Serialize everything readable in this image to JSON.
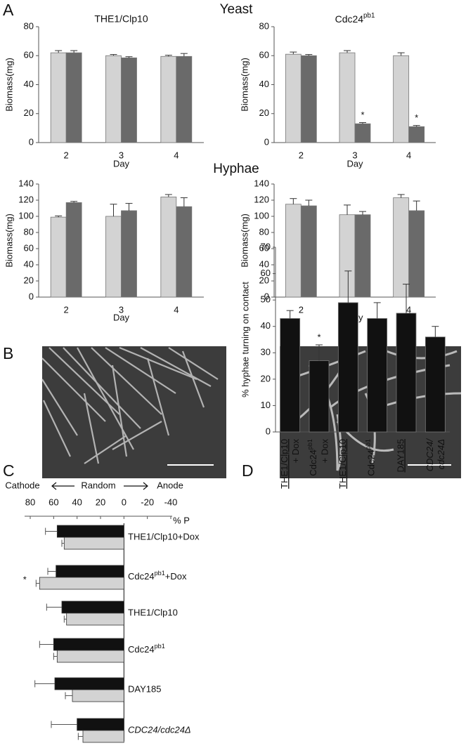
{
  "panel_labels": [
    "A",
    "B",
    "C",
    "D"
  ],
  "section_titles": [
    "Yeast",
    "Hyphae"
  ],
  "chart_data": [
    {
      "type": "bar",
      "title": "THE1/Clp10",
      "x_label": "Day",
      "y_label": "Biomass(mg)",
      "categories": [
        "2",
        "3",
        "4"
      ],
      "series": [
        {
          "color": "#d3d3d3",
          "values": [
            62,
            60,
            59.5
          ],
          "errors": [
            1.5,
            0.8,
            0.8
          ]
        },
        {
          "color": "#6a6a6a",
          "values": [
            62,
            58.5,
            59.5
          ],
          "errors": [
            1.5,
            0.8,
            2
          ]
        }
      ],
      "ylim": [
        0,
        80
      ],
      "yticks": [
        0,
        20,
        40,
        60,
        80
      ]
    },
    {
      "type": "bar",
      "title": {
        "pre": "Cdc24",
        "sup": "pb1"
      },
      "x_label": "Day",
      "y_label": "Biomass(mg)",
      "categories": [
        "2",
        "3",
        "4"
      ],
      "series": [
        {
          "color": "#d3d3d3",
          "values": [
            61,
            62,
            60
          ],
          "errors": [
            1.5,
            1.5,
            2
          ]
        },
        {
          "color": "#6a6a6a",
          "values": [
            60,
            13,
            11
          ],
          "errors": [
            0.8,
            0.8,
            0.8
          ],
          "significance": [
            null,
            "*",
            "*"
          ]
        }
      ],
      "ylim": [
        0,
        80
      ],
      "yticks": [
        0,
        20,
        40,
        60,
        80
      ]
    },
    {
      "type": "bar",
      "x_label": "Day",
      "y_label": "Biomass(mg)",
      "categories": [
        "2",
        "3",
        "4"
      ],
      "series": [
        {
          "color": "#d3d3d3",
          "values": [
            99,
            100,
            124
          ],
          "errors": [
            1.5,
            15,
            3
          ]
        },
        {
          "color": "#6a6a6a",
          "values": [
            117,
            107,
            112
          ],
          "errors": [
            1.5,
            9,
            11
          ]
        }
      ],
      "ylim": [
        0,
        140
      ],
      "yticks": [
        0,
        20,
        40,
        60,
        80,
        100,
        120,
        140
      ]
    },
    {
      "type": "bar",
      "x_label": "Day",
      "y_label": "Biomass(mg)",
      "categories": [
        "2",
        "3",
        "4"
      ],
      "series": [
        {
          "color": "#d3d3d3",
          "values": [
            115,
            102,
            123
          ],
          "errors": [
            7,
            12,
            4
          ]
        },
        {
          "color": "#6a6a6a",
          "values": [
            113,
            102,
            107
          ],
          "errors": [
            7,
            4,
            12
          ]
        }
      ],
      "ylim": [
        0,
        140
      ],
      "yticks": [
        0,
        20,
        40,
        60,
        80,
        100,
        120,
        140
      ]
    },
    {
      "type": "hbar",
      "direction_labels": [
        "Cathode",
        "Random",
        "Anode"
      ],
      "x_label": "% P",
      "categories": [
        "THE1/Clp10+Dox",
        {
          "pre": "Cdc24",
          "sup": "pb1",
          "post": "+Dox"
        },
        "THE1/Clp10",
        {
          "pre": "Cdc24",
          "sup": "pb1"
        },
        "DAY185",
        "CDC24/cdc24Δ"
      ],
      "italic": [
        5
      ],
      "series": [
        {
          "color": "#111111",
          "values": [
            57,
            58,
            53,
            60,
            59,
            40
          ],
          "errors": [
            10,
            7,
            13,
            12,
            17,
            22
          ]
        },
        {
          "color": "#d3d3d3",
          "values": [
            51,
            72,
            49,
            57,
            44,
            35
          ],
          "errors": [
            2,
            3,
            2,
            3,
            6,
            4
          ],
          "significance": [
            null,
            "*",
            null,
            null,
            null,
            null
          ]
        }
      ],
      "xlim": [
        80,
        -40
      ],
      "xticks": [
        80,
        60,
        40,
        20,
        0,
        -20,
        -40
      ]
    },
    {
      "type": "bar",
      "y_label": "% hyphae turning on contact",
      "categories": [
        [
          "THE1/Clp10",
          "+ Dox"
        ],
        [
          {
            "pre": "Cdc24",
            "sup": "pb1"
          },
          "+ Dox"
        ],
        [
          "THE1/Clp10"
        ],
        [
          {
            "pre": "Cdc24",
            "sup": "pb1"
          }
        ],
        [
          "DAY185"
        ],
        [
          "CDC24/",
          "cdc24Δ"
        ]
      ],
      "underlined": [
        0,
        2,
        4
      ],
      "italic": [
        5
      ],
      "series": [
        {
          "color": "#111111",
          "values": [
            43,
            27,
            49,
            43,
            45,
            36
          ],
          "errors": [
            3,
            6,
            12,
            6,
            11,
            4
          ],
          "significance": [
            null,
            "*",
            null,
            null,
            null,
            null
          ]
        }
      ],
      "ylim": [
        0,
        70
      ],
      "yticks": [
        0,
        10,
        20,
        30,
        40,
        50,
        60,
        70
      ]
    }
  ]
}
